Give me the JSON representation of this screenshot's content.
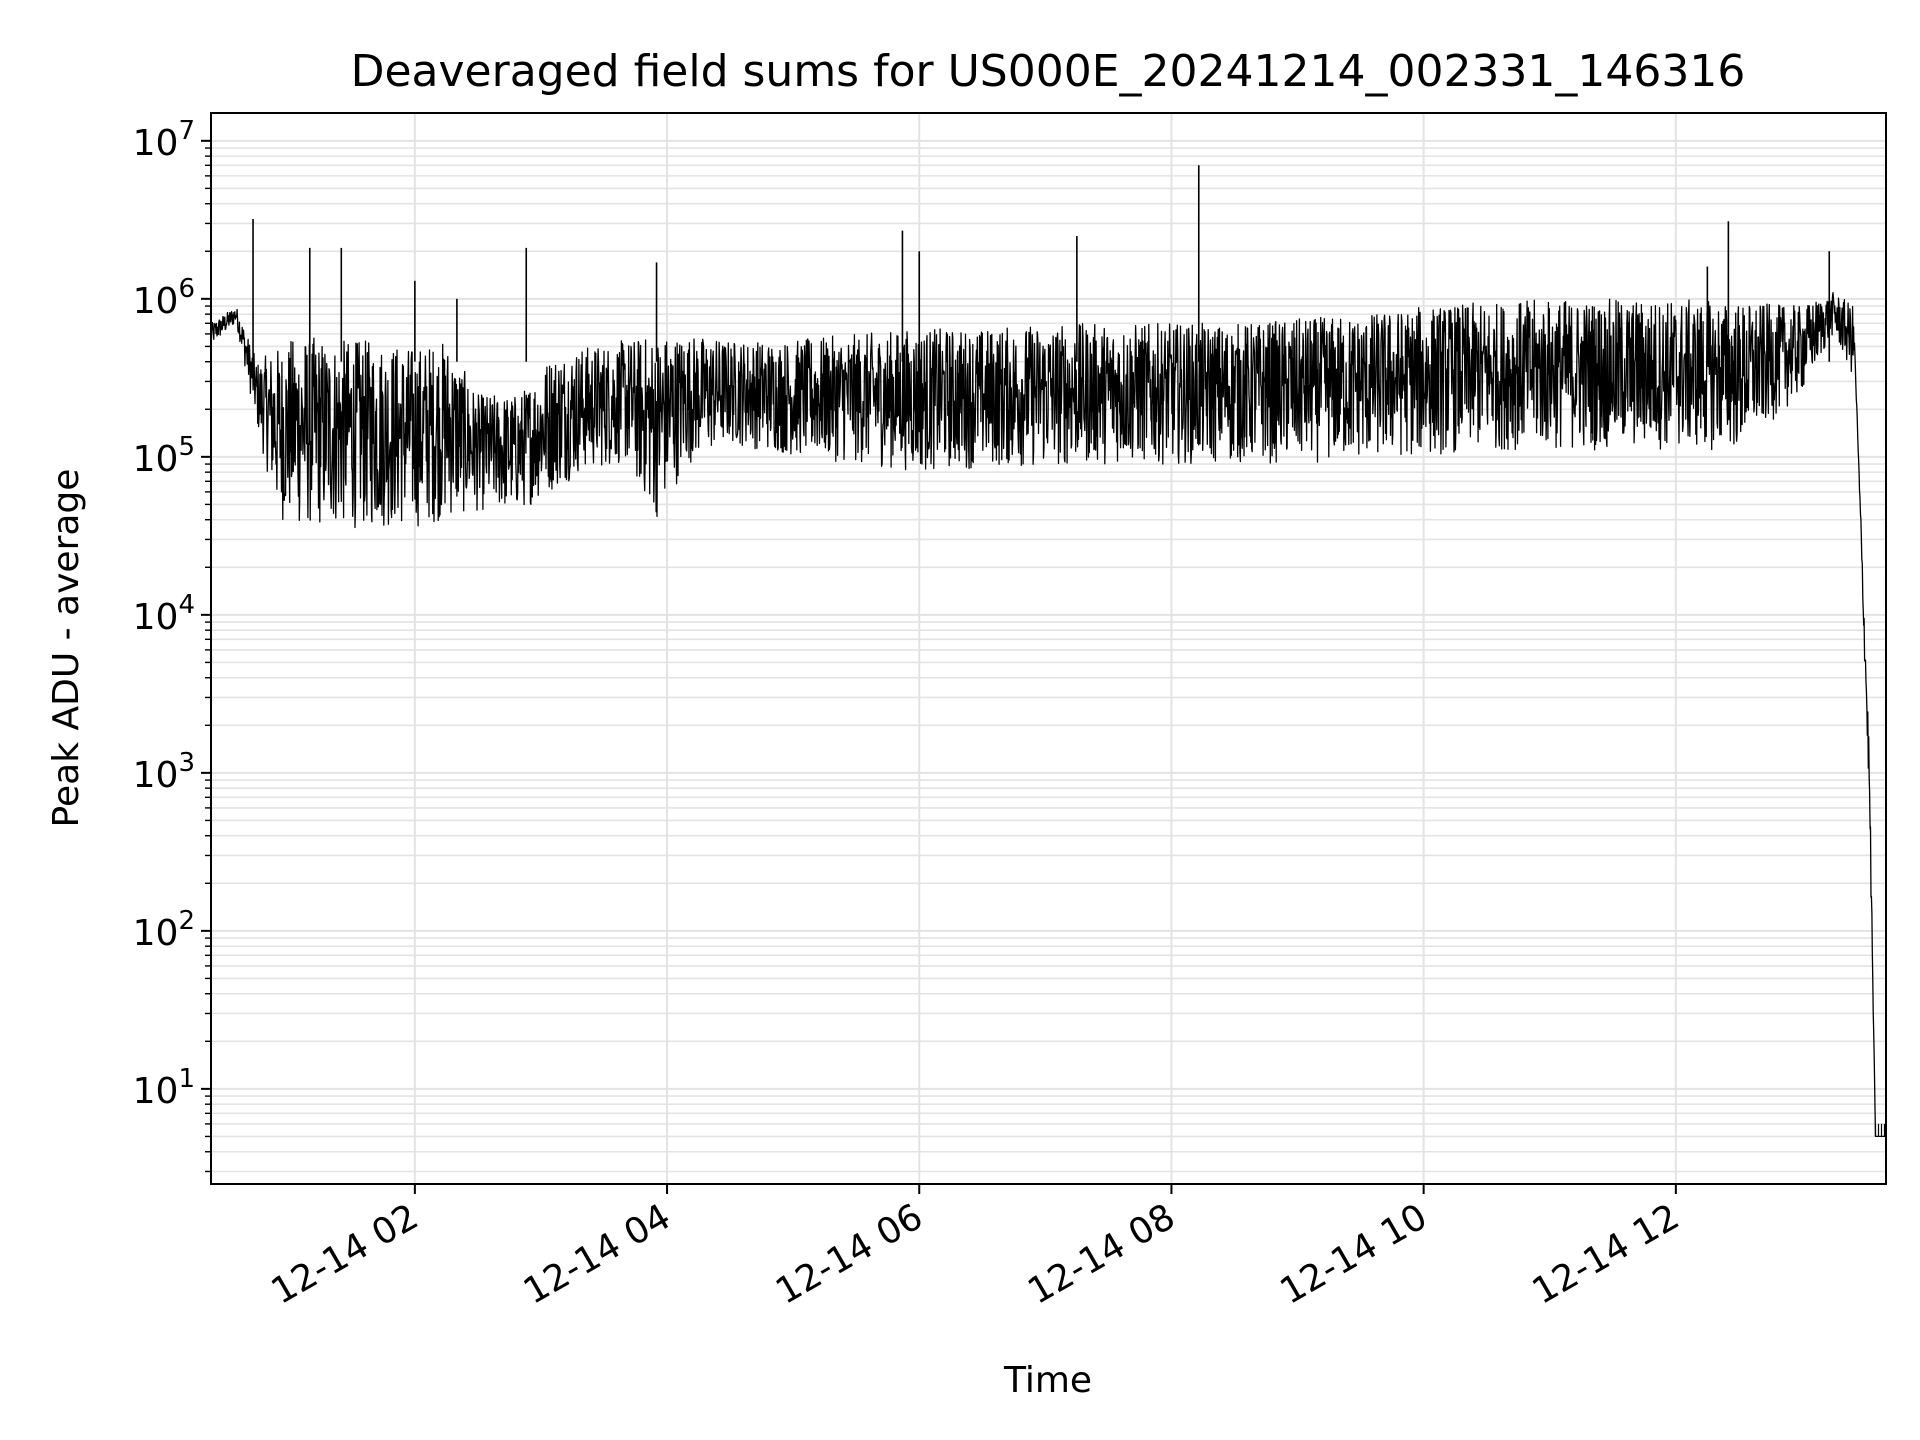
{
  "chart_data": {
    "type": "line",
    "title": "Deaveraged field sums for US000E_20241214_002331_146316",
    "xlabel": "Time",
    "ylabel": "Peak ADU - average",
    "yscale": "log",
    "ylim": [
      2.5,
      15000000
    ],
    "xlim": [
      "2024-12-14 00:23",
      "2024-12-14 13:40"
    ],
    "x_tick_labels": [
      "12-14 02",
      "12-14 04",
      "12-14 06",
      "12-14 08",
      "12-14 10",
      "12-14 12"
    ],
    "x_ticks": [
      "2024-12-14 02:00",
      "2024-12-14 04:00",
      "2024-12-14 06:00",
      "2024-12-14 08:00",
      "2024-12-14 10:00",
      "2024-12-14 12:00"
    ],
    "y_ticks": [
      {
        "value": 10,
        "base": "10",
        "exp": "1"
      },
      {
        "value": 100,
        "base": "10",
        "exp": "2"
      },
      {
        "value": 1000,
        "base": "10",
        "exp": "3"
      },
      {
        "value": 10000,
        "base": "10",
        "exp": "4"
      },
      {
        "value": 100000,
        "base": "10",
        "exp": "5"
      },
      {
        "value": 1000000,
        "base": "10",
        "exp": "6"
      },
      {
        "value": 10000000,
        "base": "10",
        "exp": "7"
      }
    ],
    "grid": true,
    "line_color": "#000000",
    "series": [
      {
        "values_note": "",
        "x": [
          "2024-12-14 00:23",
          "2024-12-14 00:35",
          "2024-12-14 00:45",
          "2024-12-14 00:55",
          "2024-12-14 01:05",
          "2024-12-14 01:20",
          "2024-12-14 01:40",
          "2024-12-14 02:00",
          "2024-12-14 02:15",
          "2024-12-14 02:30",
          "2024-12-14 02:50",
          "2024-12-14 03:05",
          "2024-12-14 03:20",
          "2024-12-14 03:40",
          "2024-12-14 03:55",
          "2024-12-14 04:10",
          "2024-12-14 04:30",
          "2024-12-14 05:00",
          "2024-12-14 05:30",
          "2024-12-14 06:00",
          "2024-12-14 06:30",
          "2024-12-14 07:00",
          "2024-12-14 07:30",
          "2024-12-14 08:00",
          "2024-12-14 08:30",
          "2024-12-14 09:00",
          "2024-12-14 09:30",
          "2024-12-14 10:00",
          "2024-12-14 10:30",
          "2024-12-14 11:00",
          "2024-12-14 11:30",
          "2024-12-14 12:00",
          "2024-12-14 12:30",
          "2024-12-14 13:00",
          "2024-12-14 13:15",
          "2024-12-14 13:25",
          "2024-12-14 13:32",
          "2024-12-14 13:35",
          "2024-12-14 13:40"
        ],
        "low": [
          500000,
          700000,
          150000,
          40000,
          35000,
          35000,
          35000,
          35000,
          40000,
          45000,
          45000,
          60000,
          80000,
          90000,
          40000,
          90000,
          120000,
          100000,
          90000,
          80000,
          85000,
          85000,
          90000,
          90000,
          90000,
          90000,
          95000,
          100000,
          110000,
          110000,
          110000,
          110000,
          110000,
          250000,
          600000,
          300000,
          10,
          5,
          5
        ],
        "high": [
          700000,
          900000,
          400000,
          500000,
          600000,
          550000,
          550000,
          500000,
          550000,
          250000,
          250000,
          450000,
          500000,
          550000,
          600000,
          600000,
          550000,
          550000,
          600000,
          650000,
          650000,
          700000,
          700000,
          700000,
          700000,
          750000,
          800000,
          900000,
          950000,
          1000000,
          1000000,
          1000000,
          950000,
          900000,
          1100000,
          900000,
          100000,
          5,
          5
        ],
        "spikes": [
          {
            "x": "2024-12-14 00:43",
            "y": 3200000
          },
          {
            "x": "2024-12-14 01:10",
            "y": 2100000
          },
          {
            "x": "2024-12-14 01:25",
            "y": 2100000
          },
          {
            "x": "2024-12-14 02:00",
            "y": 1300000
          },
          {
            "x": "2024-12-14 02:20",
            "y": 1000000
          },
          {
            "x": "2024-12-14 02:53",
            "y": 2100000
          },
          {
            "x": "2024-12-14 03:55",
            "y": 1700000
          },
          {
            "x": "2024-12-14 05:52",
            "y": 2700000
          },
          {
            "x": "2024-12-14 06:00",
            "y": 2000000
          },
          {
            "x": "2024-12-14 07:15",
            "y": 2500000
          },
          {
            "x": "2024-12-14 08:13",
            "y": 7000000
          },
          {
            "x": "2024-12-14 12:25",
            "y": 3100000
          },
          {
            "x": "2024-12-14 12:15",
            "y": 1600000
          },
          {
            "x": "2024-12-14 13:13",
            "y": 2000000
          }
        ]
      }
    ]
  }
}
